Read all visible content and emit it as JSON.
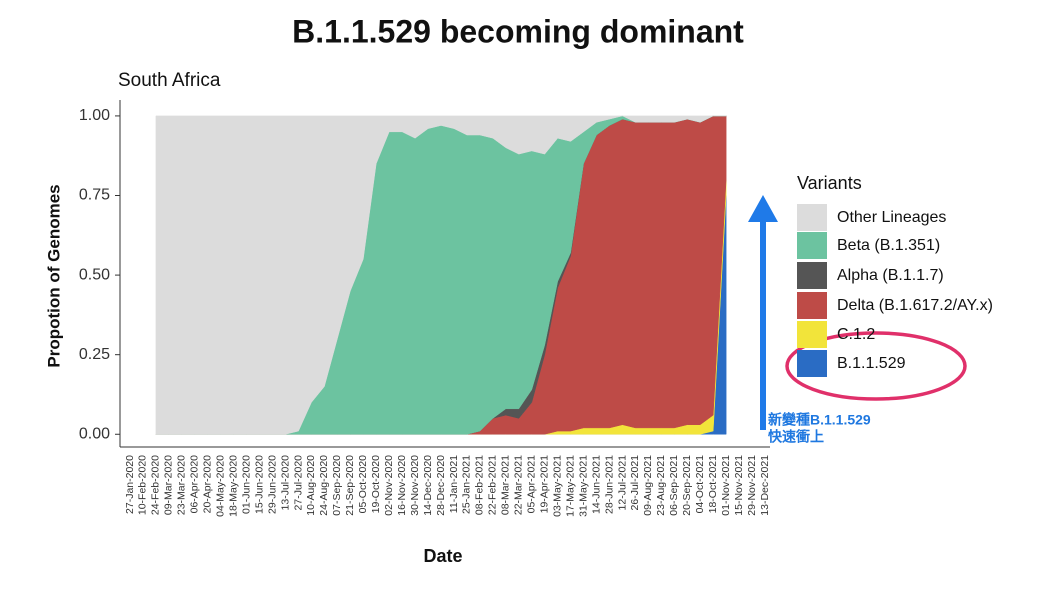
{
  "chart_data": {
    "type": "stacked_area",
    "title": "B.1.1.529 becoming dominant",
    "subtitle": "South Africa",
    "x_label": "Date",
    "y_label": "Propotion of Genomes",
    "legend_title": "Variants",
    "annotation": [
      "新變種B.1.1.529",
      "快速衝上"
    ],
    "categories": [
      "27-Jan-2020",
      "10-Feb-2020",
      "24-Feb-2020",
      "09-Mar-2020",
      "23-Mar-2020",
      "06-Apr-2020",
      "20-Apr-2020",
      "04-May-2020",
      "18-May-2020",
      "01-Jun-2020",
      "15-Jun-2020",
      "29-Jun-2020",
      "13-Jul-2020",
      "27-Jul-2020",
      "10-Aug-2020",
      "24-Aug-2020",
      "07-Sep-2020",
      "21-Sep-2020",
      "05-Oct-2020",
      "19-Oct-2020",
      "02-Nov-2020",
      "16-Nov-2020",
      "30-Nov-2020",
      "14-Dec-2020",
      "28-Dec-2020",
      "11-Jan-2021",
      "25-Jan-2021",
      "08-Feb-2021",
      "22-Feb-2021",
      "08-Mar-2021",
      "22-Mar-2021",
      "05-Apr-2021",
      "19-Apr-2021",
      "03-May-2021",
      "17-May-2021",
      "31-May-2021",
      "14-Jun-2021",
      "28-Jun-2021",
      "12-Jul-2021",
      "26-Jul-2021",
      "09-Aug-2021",
      "23-Aug-2021",
      "06-Sep-2021",
      "20-Sep-2021",
      "04-Oct-2021",
      "18-Oct-2021",
      "01-Nov-2021",
      "15-Nov-2021",
      "29-Nov-2021",
      "13-Dec-2021"
    ],
    "series": [
      {
        "name": "Other Lineages",
        "color": "#dcdcdc",
        "values": [
          null,
          null,
          1,
          1,
          1,
          1,
          1,
          1,
          1,
          1,
          1,
          1,
          1,
          0.99,
          0.9,
          0.85,
          0.7,
          0.55,
          0.45,
          0.15,
          0.05,
          0.05,
          0.07,
          0.04,
          0.03,
          0.04,
          0.06,
          0.06,
          0.07,
          0.1,
          0.12,
          0.11,
          0.12,
          0.07,
          0.08,
          0.05,
          0.02,
          0.01,
          0,
          0.02,
          0.02,
          0.02,
          0.02,
          0.01,
          0.02,
          0,
          0,
          null,
          null,
          null
        ]
      },
      {
        "name": "Beta (B.1.351)",
        "color": "#6cc3a0",
        "values": [
          null,
          null,
          0,
          0,
          0,
          0,
          0,
          0,
          0,
          0,
          0,
          0,
          0,
          0.01,
          0.1,
          0.15,
          0.3,
          0.45,
          0.55,
          0.85,
          0.95,
          0.95,
          0.93,
          0.96,
          0.97,
          0.96,
          0.94,
          0.93,
          0.88,
          0.82,
          0.8,
          0.75,
          0.6,
          0.45,
          0.35,
          0.1,
          0.04,
          0.02,
          0.01,
          0,
          0,
          0,
          0,
          0,
          0,
          0,
          0,
          null,
          null,
          null
        ]
      },
      {
        "name": "Alpha (B.1.1.7)",
        "color": "#555555",
        "values": [
          null,
          null,
          0,
          0,
          0,
          0,
          0,
          0,
          0,
          0,
          0,
          0,
          0,
          0,
          0,
          0,
          0,
          0,
          0,
          0,
          0,
          0,
          0,
          0,
          0,
          0,
          0,
          0,
          0,
          0.02,
          0.03,
          0.04,
          0.03,
          0.02,
          0.01,
          0,
          0,
          0,
          0,
          0,
          0,
          0,
          0,
          0,
          0,
          0,
          0,
          null,
          null,
          null
        ]
      },
      {
        "name": "Delta (B.1.617.2/AY.x)",
        "color": "#be4b47",
        "values": [
          null,
          null,
          0,
          0,
          0,
          0,
          0,
          0,
          0,
          0,
          0,
          0,
          0,
          0,
          0,
          0,
          0,
          0,
          0,
          0,
          0,
          0,
          0,
          0,
          0,
          0,
          0,
          0.01,
          0.05,
          0.06,
          0.05,
          0.1,
          0.25,
          0.45,
          0.55,
          0.83,
          0.92,
          0.95,
          0.96,
          0.96,
          0.96,
          0.96,
          0.96,
          0.96,
          0.95,
          0.94,
          0.2,
          null,
          null,
          null
        ]
      },
      {
        "name": "C.1.2",
        "color": "#f2e43a",
        "values": [
          null,
          null,
          0,
          0,
          0,
          0,
          0,
          0,
          0,
          0,
          0,
          0,
          0,
          0,
          0,
          0,
          0,
          0,
          0,
          0,
          0,
          0,
          0,
          0,
          0,
          0,
          0,
          0,
          0,
          0,
          0,
          0,
          0,
          0.01,
          0.01,
          0.02,
          0.02,
          0.02,
          0.03,
          0.02,
          0.02,
          0.02,
          0.02,
          0.03,
          0.03,
          0.05,
          0.05,
          null,
          null,
          null
        ]
      },
      {
        "name": "B.1.1.529",
        "color": "#2a6cc4",
        "values": [
          null,
          null,
          0,
          0,
          0,
          0,
          0,
          0,
          0,
          0,
          0,
          0,
          0,
          0,
          0,
          0,
          0,
          0,
          0,
          0,
          0,
          0,
          0,
          0,
          0,
          0,
          0,
          0,
          0,
          0,
          0,
          0,
          0,
          0,
          0,
          0,
          0,
          0,
          0,
          0,
          0,
          0,
          0,
          0,
          0,
          0.01,
          0.75,
          null,
          null,
          null
        ]
      }
    ],
    "ylim": [
      -0.04,
      1.05
    ],
    "yticks": [
      {
        "value": 0,
        "label": "0.00"
      },
      {
        "value": 0.25,
        "label": "0.25"
      },
      {
        "value": 0.5,
        "label": "0.50"
      },
      {
        "value": 0.75,
        "label": "0.75"
      },
      {
        "value": 1,
        "label": "1.00"
      }
    ],
    "legend": "right"
  }
}
